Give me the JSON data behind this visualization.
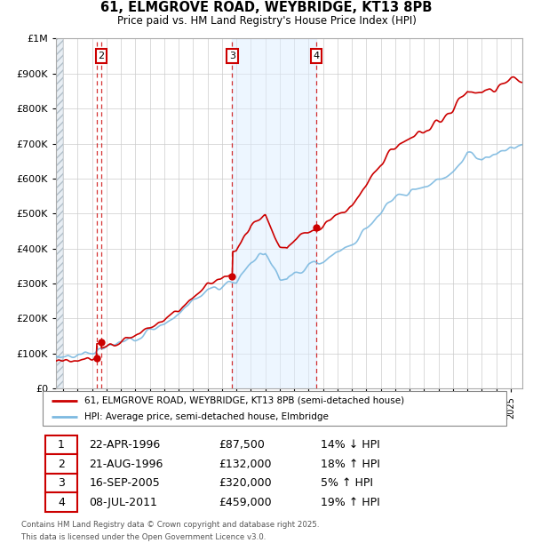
{
  "title": "61, ELMGROVE ROAD, WEYBRIDGE, KT13 8PB",
  "subtitle": "Price paid vs. HM Land Registry's House Price Index (HPI)",
  "legend_line1": "61, ELMGROVE ROAD, WEYBRIDGE, KT13 8PB (semi-detached house)",
  "legend_line2": "HPI: Average price, semi-detached house, Elmbridge",
  "footer1": "Contains HM Land Registry data © Crown copyright and database right 2025.",
  "footer2": "This data is licensed under the Open Government Licence v3.0.",
  "transactions": [
    {
      "num": 1,
      "date": "22-APR-1996",
      "year": 1996.31,
      "price": 87500,
      "pct": "14%",
      "dir": "↓"
    },
    {
      "num": 2,
      "date": "21-AUG-1996",
      "year": 1996.64,
      "price": 132000,
      "pct": "18%",
      "dir": "↑"
    },
    {
      "num": 3,
      "date": "16-SEP-2005",
      "year": 2005.71,
      "price": 320000,
      "pct": "5%",
      "dir": "↑"
    },
    {
      "num": 4,
      "date": "08-JUL-2011",
      "year": 2011.52,
      "price": 459000,
      "pct": "19%",
      "dir": "↑"
    }
  ],
  "row_data": [
    [
      "1",
      "22-APR-1996",
      "£87,500",
      "14% ↓ HPI"
    ],
    [
      "2",
      "21-AUG-1996",
      "£132,000",
      "18% ↑ HPI"
    ],
    [
      "3",
      "16-SEP-2005",
      "£320,000",
      "5% ↑ HPI"
    ],
    [
      "4",
      "08-JUL-2011",
      "£459,000",
      "19% ↑ HPI"
    ]
  ],
  "hpi_color": "#7cb9e0",
  "price_color": "#cc0000",
  "ylim_max": 1000000,
  "xmin": 1993.5,
  "xmax": 2025.8
}
